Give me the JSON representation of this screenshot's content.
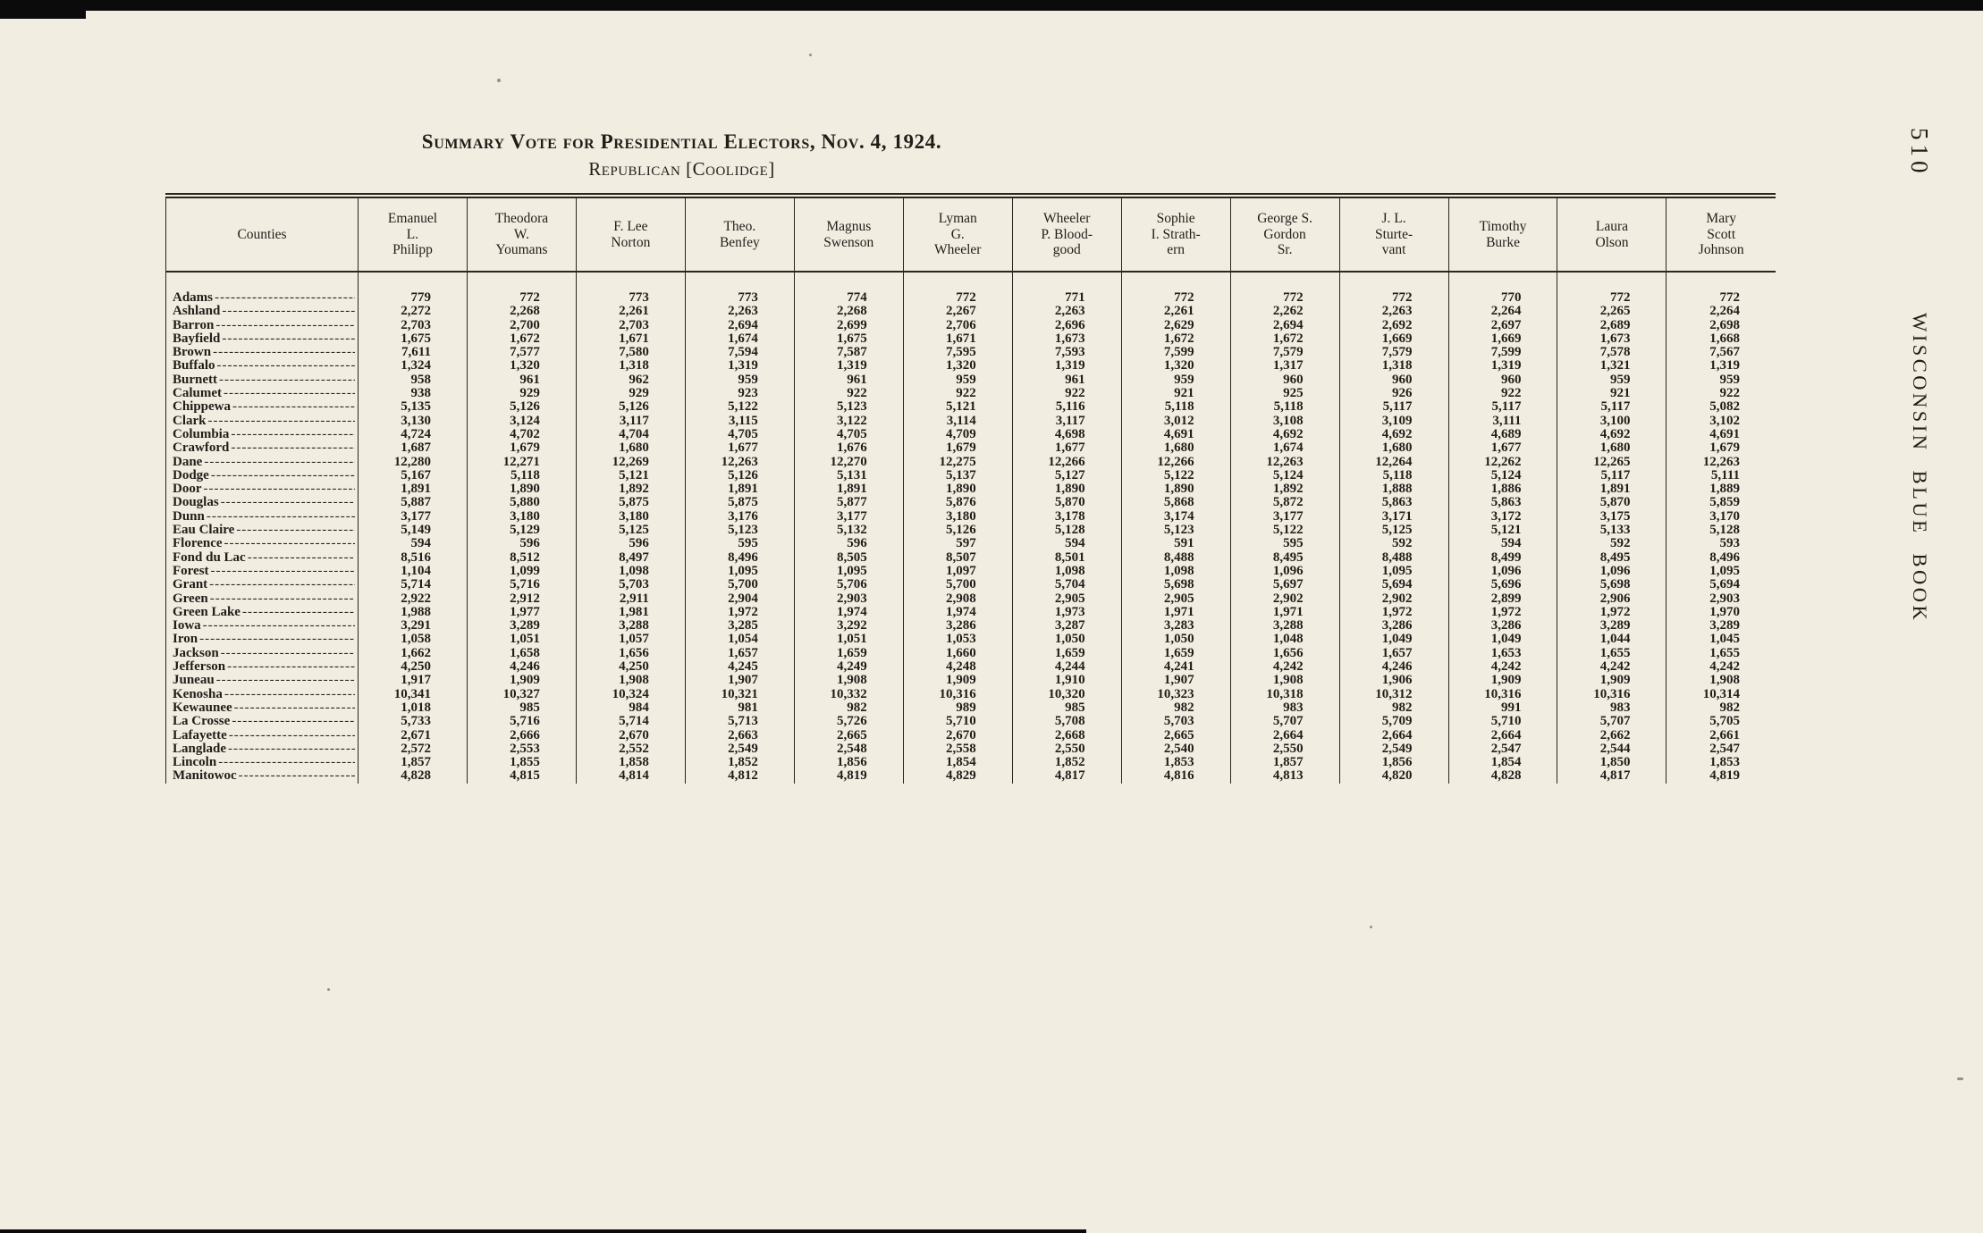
{
  "page": {
    "page_number": "510",
    "side_text": "WISCONSIN BLUE BOOK"
  },
  "title": {
    "line1": "Summary Vote for Presidential Electors, Nov. 4, 1924.",
    "line2": "Republican [Coolidge]"
  },
  "table": {
    "county_header": "Counties",
    "columns": [
      "Emanuel\nL.\nPhilipp",
      "Theodora\nW.\nYoumans",
      "F. Lee\nNorton",
      "Theo.\nBenfey",
      "Magnus\nSwenson",
      "Lyman\nG.\nWheeler",
      "Wheeler\nP. Blood-\ngood",
      "Sophie\nI. Strath-\nern",
      "George S.\nGordon\nSr.",
      "J. L.\nSturte-\nvant",
      "Timothy\nBurke",
      "Laura\nOlson",
      "Mary\nScott\nJohnson"
    ],
    "rows": [
      {
        "county": "Adams",
        "values": [
          "779",
          "772",
          "773",
          "773",
          "774",
          "772",
          "771",
          "772",
          "772",
          "772",
          "770",
          "772",
          "772"
        ]
      },
      {
        "county": "Ashland",
        "values": [
          "2,272",
          "2,268",
          "2,261",
          "2,263",
          "2,268",
          "2,267",
          "2,263",
          "2,261",
          "2,262",
          "2,263",
          "2,264",
          "2,265",
          "2,264"
        ]
      },
      {
        "county": "Barron",
        "values": [
          "2,703",
          "2,700",
          "2,703",
          "2,694",
          "2,699",
          "2,706",
          "2,696",
          "2,629",
          "2,694",
          "2,692",
          "2,697",
          "2,689",
          "2,698"
        ]
      },
      {
        "county": "Bayfield",
        "values": [
          "1,675",
          "1,672",
          "1,671",
          "1,674",
          "1,675",
          "1,671",
          "1,673",
          "1,672",
          "1,672",
          "1,669",
          "1,669",
          "1,673",
          "1,668"
        ]
      },
      {
        "county": "Brown",
        "values": [
          "7,611",
          "7,577",
          "7,580",
          "7,594",
          "7,587",
          "7,595",
          "7,593",
          "7,599",
          "7,579",
          "7,579",
          "7,599",
          "7,578",
          "7,567"
        ]
      },
      {
        "county": "Buffalo",
        "values": [
          "1,324",
          "1,320",
          "1,318",
          "1,319",
          "1,319",
          "1,320",
          "1,319",
          "1,320",
          "1,317",
          "1,318",
          "1,319",
          "1,321",
          "1,319"
        ]
      },
      {
        "county": "Burnett",
        "values": [
          "958",
          "961",
          "962",
          "959",
          "961",
          "959",
          "961",
          "959",
          "960",
          "960",
          "960",
          "959",
          "959"
        ]
      },
      {
        "county": "Calumet",
        "values": [
          "938",
          "929",
          "929",
          "923",
          "922",
          "922",
          "922",
          "921",
          "925",
          "926",
          "922",
          "921",
          "922"
        ]
      },
      {
        "county": "Chippewa",
        "values": [
          "5,135",
          "5,126",
          "5,126",
          "5,122",
          "5,123",
          "5,121",
          "5,116",
          "5,118",
          "5,118",
          "5,117",
          "5,117",
          "5,117",
          "5,082"
        ]
      },
      {
        "county": "Clark",
        "values": [
          "3,130",
          "3,124",
          "3,117",
          "3,115",
          "3,122",
          "3,114",
          "3,117",
          "3,012",
          "3,108",
          "3,109",
          "3,111",
          "3,100",
          "3,102"
        ]
      },
      {
        "county": "Columbia",
        "values": [
          "4,724",
          "4,702",
          "4,704",
          "4,705",
          "4,705",
          "4,709",
          "4,698",
          "4,691",
          "4,692",
          "4,692",
          "4,689",
          "4,692",
          "4,691"
        ]
      },
      {
        "county": "Crawford",
        "values": [
          "1,687",
          "1,679",
          "1,680",
          "1,677",
          "1,676",
          "1,679",
          "1,677",
          "1,680",
          "1,674",
          "1,680",
          "1,677",
          "1,680",
          "1,679"
        ]
      },
      {
        "county": "Dane",
        "values": [
          "12,280",
          "12,271",
          "12,269",
          "12,263",
          "12,270",
          "12,275",
          "12,266",
          "12,266",
          "12,263",
          "12,264",
          "12,262",
          "12,265",
          "12,263"
        ]
      },
      {
        "county": "Dodge",
        "values": [
          "5,167",
          "5,118",
          "5,121",
          "5,126",
          "5,131",
          "5,137",
          "5,127",
          "5,122",
          "5,124",
          "5,118",
          "5,124",
          "5,117",
          "5,111"
        ]
      },
      {
        "county": "Door",
        "values": [
          "1,891",
          "1,890",
          "1,892",
          "1,891",
          "1,891",
          "1,890",
          "1,890",
          "1,890",
          "1,892",
          "1,888",
          "1,886",
          "1,891",
          "1,889"
        ]
      },
      {
        "county": "Douglas",
        "values": [
          "5,887",
          "5,880",
          "5,875",
          "5,875",
          "5,877",
          "5,876",
          "5,870",
          "5,868",
          "5,872",
          "5,863",
          "5,863",
          "5,870",
          "5,859"
        ]
      },
      {
        "county": "Dunn",
        "values": [
          "3,177",
          "3,180",
          "3,180",
          "3,176",
          "3,177",
          "3,180",
          "3,178",
          "3,174",
          "3,177",
          "3,171",
          "3,172",
          "3,175",
          "3,170"
        ]
      },
      {
        "county": "Eau Claire",
        "values": [
          "5,149",
          "5,129",
          "5,125",
          "5,123",
          "5,132",
          "5,126",
          "5,128",
          "5,123",
          "5,122",
          "5,125",
          "5,121",
          "5,133",
          "5,128"
        ]
      },
      {
        "county": "Florence",
        "values": [
          "594",
          "596",
          "596",
          "595",
          "596",
          "597",
          "594",
          "591",
          "595",
          "592",
          "594",
          "592",
          "593"
        ]
      },
      {
        "county": "Fond du Lac",
        "values": [
          "8,516",
          "8,512",
          "8,497",
          "8,496",
          "8,505",
          "8,507",
          "8,501",
          "8,488",
          "8,495",
          "8,488",
          "8,499",
          "8,495",
          "8,496"
        ]
      },
      {
        "county": "Forest",
        "values": [
          "1,104",
          "1,099",
          "1,098",
          "1,095",
          "1,095",
          "1,097",
          "1,098",
          "1,098",
          "1,096",
          "1,095",
          "1,096",
          "1,096",
          "1,095"
        ]
      },
      {
        "county": "Grant",
        "values": [
          "5,714",
          "5,716",
          "5,703",
          "5,700",
          "5,706",
          "5,700",
          "5,704",
          "5,698",
          "5,697",
          "5,694",
          "5,696",
          "5,698",
          "5,694"
        ]
      },
      {
        "county": "Green",
        "values": [
          "2,922",
          "2,912",
          "2,911",
          "2,904",
          "2,903",
          "2,908",
          "2,905",
          "2,905",
          "2,902",
          "2,902",
          "2,899",
          "2,906",
          "2,903"
        ]
      },
      {
        "county": "Green Lake",
        "values": [
          "1,988",
          "1,977",
          "1,981",
          "1,972",
          "1,974",
          "1,974",
          "1,973",
          "1,971",
          "1,971",
          "1,972",
          "1,972",
          "1,972",
          "1,970"
        ]
      },
      {
        "county": "Iowa",
        "values": [
          "3,291",
          "3,289",
          "3,288",
          "3,285",
          "3,292",
          "3,286",
          "3,287",
          "3,283",
          "3,288",
          "3,286",
          "3,286",
          "3,289",
          "3,289"
        ]
      },
      {
        "county": "Iron",
        "values": [
          "1,058",
          "1,051",
          "1,057",
          "1,054",
          "1,051",
          "1,053",
          "1,050",
          "1,050",
          "1,048",
          "1,049",
          "1,049",
          "1,044",
          "1,045"
        ]
      },
      {
        "county": "Jackson",
        "values": [
          "1,662",
          "1,658",
          "1,656",
          "1,657",
          "1,659",
          "1,660",
          "1,659",
          "1,659",
          "1,656",
          "1,657",
          "1,653",
          "1,655",
          "1,655"
        ]
      },
      {
        "county": "Jefferson",
        "values": [
          "4,250",
          "4,246",
          "4,250",
          "4,245",
          "4,249",
          "4,248",
          "4,244",
          "4,241",
          "4,242",
          "4,246",
          "4,242",
          "4,242",
          "4,242"
        ]
      },
      {
        "county": "Juneau",
        "values": [
          "1,917",
          "1,909",
          "1,908",
          "1,907",
          "1,908",
          "1,909",
          "1,910",
          "1,907",
          "1,908",
          "1,906",
          "1,909",
          "1,909",
          "1,908"
        ]
      },
      {
        "county": "Kenosha",
        "values": [
          "10,341",
          "10,327",
          "10,324",
          "10,321",
          "10,332",
          "10,316",
          "10,320",
          "10,323",
          "10,318",
          "10,312",
          "10,316",
          "10,316",
          "10,314"
        ]
      },
      {
        "county": "Kewaunee",
        "values": [
          "1,018",
          "985",
          "984",
          "981",
          "982",
          "989",
          "985",
          "982",
          "983",
          "982",
          "991",
          "983",
          "982"
        ]
      },
      {
        "county": "La Crosse",
        "values": [
          "5,733",
          "5,716",
          "5,714",
          "5,713",
          "5,726",
          "5,710",
          "5,708",
          "5,703",
          "5,707",
          "5,709",
          "5,710",
          "5,707",
          "5,705"
        ]
      },
      {
        "county": "Lafayette",
        "values": [
          "2,671",
          "2,666",
          "2,670",
          "2,663",
          "2,665",
          "2,670",
          "2,668",
          "2,665",
          "2,664",
          "2,664",
          "2,664",
          "2,662",
          "2,661"
        ]
      },
      {
        "county": "Langlade",
        "values": [
          "2,572",
          "2,553",
          "2,552",
          "2,549",
          "2,548",
          "2,558",
          "2,550",
          "2,540",
          "2,550",
          "2,549",
          "2,547",
          "2,544",
          "2,547"
        ]
      },
      {
        "county": "Lincoln",
        "values": [
          "1,857",
          "1,855",
          "1,858",
          "1,852",
          "1,856",
          "1,854",
          "1,852",
          "1,853",
          "1,857",
          "1,856",
          "1,854",
          "1,850",
          "1,853"
        ]
      },
      {
        "county": "Manitowoc",
        "values": [
          "4,828",
          "4,815",
          "4,814",
          "4,812",
          "4,819",
          "4,829",
          "4,817",
          "4,816",
          "4,813",
          "4,820",
          "4,828",
          "4,817",
          "4,819"
        ]
      }
    ]
  }
}
